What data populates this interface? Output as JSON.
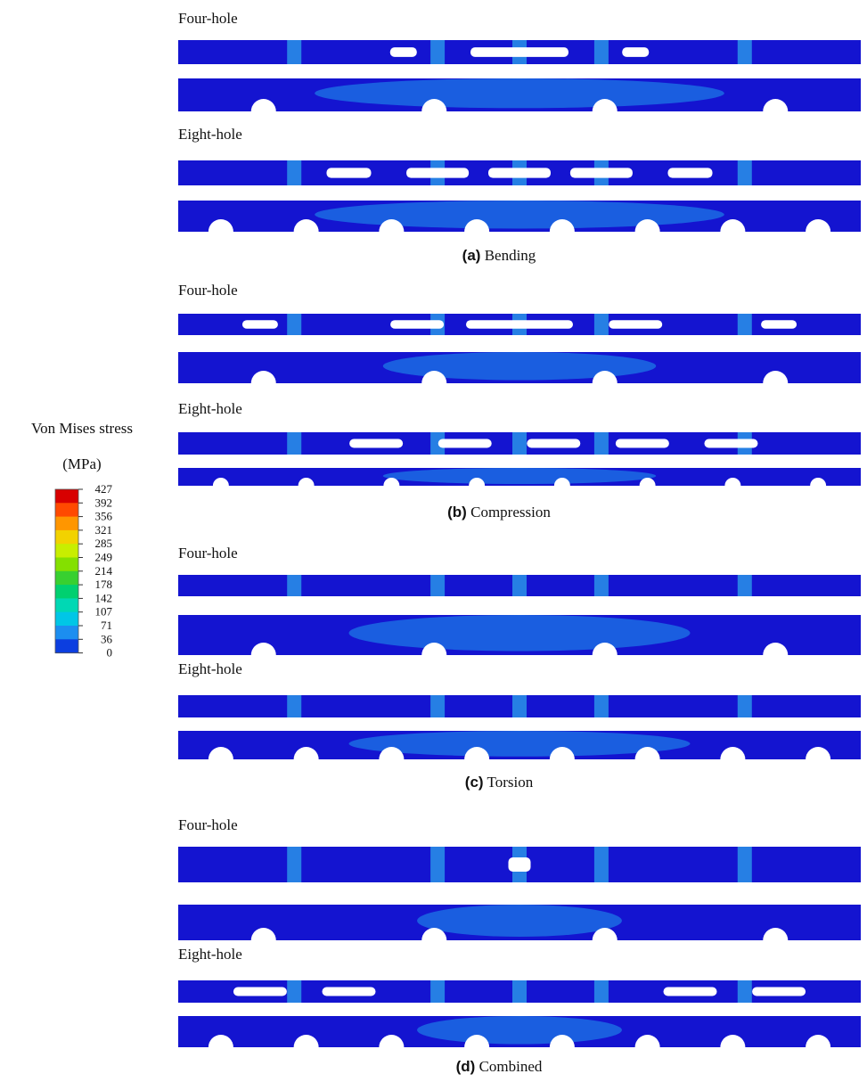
{
  "legend": {
    "title": "Von Mises stress",
    "unit": "(MPa)",
    "levels": [
      427,
      392,
      356,
      321,
      285,
      249,
      214,
      178,
      142,
      107,
      71,
      36,
      0
    ]
  },
  "panels": [
    {
      "label": "(a)",
      "caption": "Bending",
      "rows": [
        "Four-hole",
        "Eight-hole"
      ]
    },
    {
      "label": "(b)",
      "caption": "Compression",
      "rows": [
        "Four-hole",
        "Eight-hole"
      ]
    },
    {
      "label": "(c)",
      "caption": "Torsion",
      "rows": [
        "Four-hole",
        "Eight-hole"
      ]
    },
    {
      "label": "(d)",
      "caption": "Combined",
      "rows": [
        "Four-hole",
        "Eight-hole"
      ]
    }
  ]
}
